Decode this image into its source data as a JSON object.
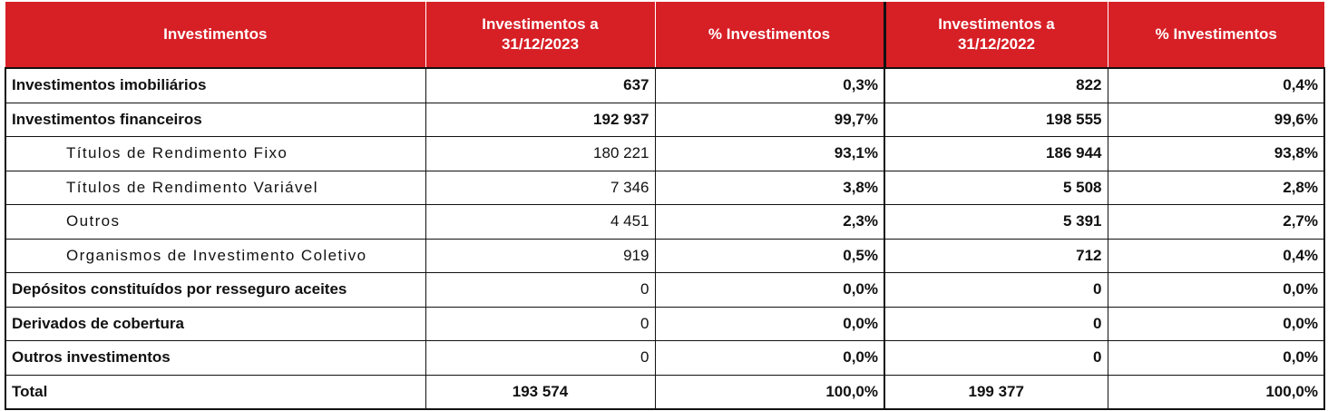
{
  "table": {
    "headers": {
      "col0": "Investimentos",
      "col1_line1": "Investimentos a",
      "col1_line2": "31/12/2023",
      "col2": "% Investimentos",
      "col3_line1": "Investimentos a",
      "col3_line2": "31/12/2022",
      "col4": "% Investimentos"
    },
    "rows": [
      {
        "label": "Investimentos imobiliários",
        "v2023": "637",
        "p2023": "0,3%",
        "v2022": "822",
        "p2022": "0,4%"
      },
      {
        "label": "Investimentos financeiros",
        "v2023": "192 937",
        "p2023": "99,7%",
        "v2022": "198 555",
        "p2022": "99,6%"
      },
      {
        "label": "Títulos de Rendimento Fixo",
        "v2023": "180 221",
        "p2023": "93,1%",
        "v2022": "186 944",
        "p2022": "93,8%"
      },
      {
        "label": "Títulos de Rendimento Variável",
        "v2023": "7 346",
        "p2023": "3,8%",
        "v2022": "5 508",
        "p2022": "2,8%"
      },
      {
        "label": "Outros",
        "v2023": "4 451",
        "p2023": "2,3%",
        "v2022": "5 391",
        "p2022": "2,7%"
      },
      {
        "label": "Organismos de Investimento Coletivo",
        "v2023": "919",
        "p2023": "0,5%",
        "v2022": "712",
        "p2022": "0,4%"
      },
      {
        "label": "Depósitos constituídos por resseguro aceites",
        "v2023": "0",
        "p2023": "0,0%",
        "v2022": "0",
        "p2022": "0,0%"
      },
      {
        "label": "Derivados de cobertura",
        "v2023": "0",
        "p2023": "0,0%",
        "v2022": "0",
        "p2022": "0,0%"
      },
      {
        "label": "Outros investimentos",
        "v2023": "0",
        "p2023": "0,0%",
        "v2022": "0",
        "p2022": "0,0%"
      },
      {
        "label": "Total",
        "v2023": "193 574",
        "p2023": "100,0%",
        "v2022": "199 377",
        "p2022": "100,0%"
      }
    ]
  },
  "colors": {
    "header_background": "#d71f26",
    "header_text": "#ffffff",
    "grid_lines": "#111111"
  }
}
